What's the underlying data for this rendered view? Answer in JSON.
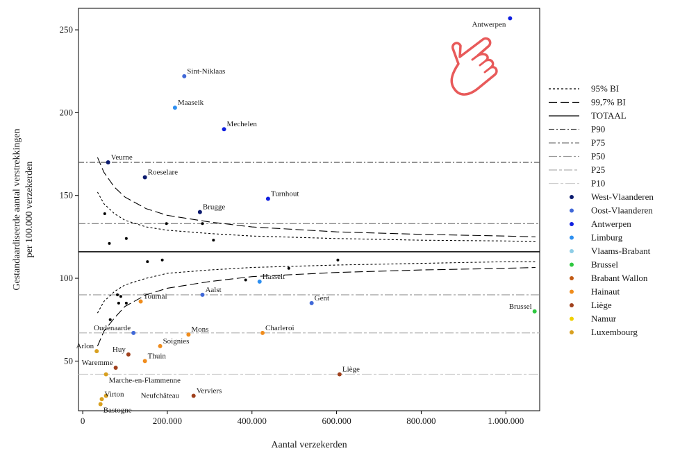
{
  "chart_data": {
    "type": "scatter",
    "title": "",
    "xlabel": "Aantal verzekerden",
    "ylabel": "Gestandaardiseerde aantal verstrekkingen per 100.000 verzekerden",
    "ylabel_lines": [
      "Gestandaardiseerde aantal verstrekkingen",
      "per 100.000 verzekerden"
    ],
    "xlim": [
      -10000,
      1080000
    ],
    "ylim": [
      20,
      263
    ],
    "x_ticks": [
      0,
      200000,
      400000,
      600000,
      800000,
      1000000
    ],
    "x_tick_labels": [
      "0",
      "200.000",
      "400.000",
      "600.000",
      "800.000",
      "1.000.000"
    ],
    "y_ticks": [
      50,
      100,
      150,
      200,
      250
    ],
    "y_tick_labels": [
      "50",
      "100",
      "150",
      "200",
      "250"
    ],
    "totaal": 116,
    "percentiles": [
      {
        "name": "P90",
        "value": 170,
        "color": "#555555",
        "dash": "8,3,2,3"
      },
      {
        "name": "P75",
        "value": 133,
        "color": "#777777",
        "dash": "10,3,3,3"
      },
      {
        "name": "P50",
        "value": 90,
        "color": "#999999",
        "dash": "12,3,3,3"
      },
      {
        "name": "P25",
        "value": 67,
        "color": "#b0b0b0",
        "dash": "12,3,4,3"
      },
      {
        "name": "P10",
        "value": 42,
        "color": "#cfcfcf",
        "dash": "14,3,4,3"
      }
    ],
    "ci95": {
      "name": "95% BI",
      "upper": [
        [
          35000,
          152
        ],
        [
          50000,
          145
        ],
        [
          75000,
          139
        ],
        [
          100000,
          135
        ],
        [
          150000,
          131
        ],
        [
          200000,
          129
        ],
        [
          300000,
          127
        ],
        [
          400000,
          125.5
        ],
        [
          600000,
          124
        ],
        [
          800000,
          123
        ],
        [
          1000000,
          122.5
        ],
        [
          1070000,
          122
        ]
      ],
      "lower": [
        [
          35000,
          79
        ],
        [
          50000,
          86
        ],
        [
          75000,
          92
        ],
        [
          100000,
          96
        ],
        [
          150000,
          100
        ],
        [
          200000,
          103
        ],
        [
          300000,
          105
        ],
        [
          400000,
          106.5
        ],
        [
          600000,
          108
        ],
        [
          800000,
          109
        ],
        [
          1000000,
          110
        ],
        [
          1070000,
          110
        ]
      ]
    },
    "ci997": {
      "name": "99,7% BI",
      "upper": [
        [
          35000,
          173
        ],
        [
          50000,
          164
        ],
        [
          75000,
          155
        ],
        [
          100000,
          149
        ],
        [
          150000,
          142
        ],
        [
          200000,
          138
        ],
        [
          300000,
          134
        ],
        [
          400000,
          131
        ],
        [
          600000,
          128
        ],
        [
          800000,
          126.5
        ],
        [
          1000000,
          125.5
        ],
        [
          1070000,
          125
        ]
      ],
      "lower": [
        [
          35000,
          59
        ],
        [
          50000,
          68
        ],
        [
          75000,
          76
        ],
        [
          100000,
          83
        ],
        [
          150000,
          90
        ],
        [
          200000,
          94
        ],
        [
          300000,
          98
        ],
        [
          400000,
          101
        ],
        [
          600000,
          103.5
        ],
        [
          800000,
          105
        ],
        [
          1000000,
          106
        ],
        [
          1070000,
          106.5
        ]
      ]
    },
    "legend_lines": [
      {
        "name": "95% BI",
        "dash": "3,3",
        "color": "#000000"
      },
      {
        "name": "99,7% BI",
        "dash": "12,5",
        "color": "#000000"
      },
      {
        "name": "TOTAAL",
        "dash": "",
        "color": "#000000"
      },
      {
        "name": "P90",
        "dash": "8,3,2,3",
        "color": "#555555"
      },
      {
        "name": "P75",
        "dash": "10,3,3,3",
        "color": "#777777"
      },
      {
        "name": "P50",
        "dash": "12,3,3,3",
        "color": "#999999"
      },
      {
        "name": "P25",
        "dash": "12,3,4,3",
        "color": "#b0b0b0"
      },
      {
        "name": "P10",
        "dash": "14,3,4,3",
        "color": "#cfcfcf"
      }
    ],
    "provinces": [
      {
        "name": "West-Vlaanderen",
        "color": "#0b1a6e"
      },
      {
        "name": "Oost-Vlaanderen",
        "color": "#4169d8"
      },
      {
        "name": "Antwerpen",
        "color": "#1020e0"
      },
      {
        "name": "Limburg",
        "color": "#2e8ff0"
      },
      {
        "name": "Vlaams-Brabant",
        "color": "#8ecde6"
      },
      {
        "name": "Brussel",
        "color": "#2ec840"
      },
      {
        "name": "Brabant Wallon",
        "color": "#c25a14"
      },
      {
        "name": "Hainaut",
        "color": "#f08c1c"
      },
      {
        "name": "Liège",
        "color": "#a0401c"
      },
      {
        "name": "Namur",
        "color": "#f0d000"
      },
      {
        "name": "Luxembourg",
        "color": "#d8a020"
      }
    ],
    "points": [
      {
        "label": "Antwerpen",
        "x": 1010000,
        "y": 257,
        "province": "Antwerpen",
        "label_pos": "left-below"
      },
      {
        "label": "Sint-Niklaas",
        "x": 240000,
        "y": 222,
        "province": "Oost-Vlaanderen",
        "label_pos": "right-above"
      },
      {
        "label": "Maaseik",
        "x": 218000,
        "y": 203,
        "province": "Limburg",
        "label_pos": "right-above"
      },
      {
        "label": "Mechelen",
        "x": 334000,
        "y": 190,
        "province": "Antwerpen",
        "label_pos": "right-above"
      },
      {
        "label": "Veurne",
        "x": 60000,
        "y": 170,
        "province": "West-Vlaanderen",
        "label_pos": "right-above"
      },
      {
        "label": "Roeselare",
        "x": 147000,
        "y": 161,
        "province": "West-Vlaanderen",
        "label_pos": "right-above"
      },
      {
        "label": "Turnhout",
        "x": 438000,
        "y": 148,
        "province": "Antwerpen",
        "label_pos": "right-above"
      },
      {
        "label": "Brugge",
        "x": 277000,
        "y": 140,
        "province": "West-Vlaanderen",
        "label_pos": "right-above"
      },
      {
        "label": "Hasselt",
        "x": 418000,
        "y": 98,
        "province": "Limburg",
        "label_pos": "right-above"
      },
      {
        "label": "Aalst",
        "x": 283000,
        "y": 90,
        "province": "Oost-Vlaanderen",
        "label_pos": "right-above"
      },
      {
        "label": "Tournai",
        "x": 137000,
        "y": 86,
        "province": "Hainaut",
        "label_pos": "right-above"
      },
      {
        "label": "Gent",
        "x": 541000,
        "y": 85,
        "province": "Oost-Vlaanderen",
        "label_pos": "right-above"
      },
      {
        "label": "Brussel",
        "x": 1068000,
        "y": 80,
        "province": "Brussel",
        "label_pos": "left-above"
      },
      {
        "label": "Oudenaarde",
        "x": 120000,
        "y": 67,
        "province": "Oost-Vlaanderen",
        "label_pos": "left-above"
      },
      {
        "label": "Charleroi",
        "x": 425000,
        "y": 67,
        "province": "Hainaut",
        "label_pos": "right-above"
      },
      {
        "label": "Mons",
        "x": 250000,
        "y": 66,
        "province": "Hainaut",
        "label_pos": "right-above"
      },
      {
        "label": "Soignies",
        "x": 183000,
        "y": 59,
        "province": "Hainaut",
        "label_pos": "right-above"
      },
      {
        "label": "Arlon",
        "x": 33000,
        "y": 56,
        "province": "Luxembourg",
        "label_pos": "left-above"
      },
      {
        "label": "Huy",
        "x": 108000,
        "y": 54,
        "province": "Liège",
        "label_pos": "left-above"
      },
      {
        "label": "Thuin",
        "x": 147000,
        "y": 50,
        "province": "Hainaut",
        "label_pos": "right-above"
      },
      {
        "label": "Waremme",
        "x": 78000,
        "y": 46,
        "province": "Liège",
        "label_pos": "left-above"
      },
      {
        "label": "Liège",
        "x": 607000,
        "y": 42,
        "province": "Liège",
        "label_pos": "right-above"
      },
      {
        "label": "Marche-en-Flammenne",
        "x": 55000,
        "y": 42,
        "province": "Luxembourg",
        "label_pos": "right-below"
      },
      {
        "label": "Neufchâteau",
        "x": 55000,
        "y": 29,
        "province": "Luxembourg",
        "label_pos": "right-far-above"
      },
      {
        "label": "Verviers",
        "x": 262000,
        "y": 29,
        "province": "Liège",
        "label_pos": "right-above"
      },
      {
        "label": "Virton",
        "x": 45000,
        "y": 27,
        "province": "Luxembourg",
        "label_pos": "right-above"
      },
      {
        "label": "Bastogne",
        "x": 42000,
        "y": 24,
        "province": "Luxembourg",
        "label_pos": "right-below"
      }
    ],
    "unlabeled_points": [
      [
        52000,
        139
      ],
      [
        63000,
        121
      ],
      [
        103000,
        124
      ],
      [
        198000,
        133
      ],
      [
        283000,
        133
      ],
      [
        309000,
        123
      ],
      [
        153000,
        110
      ],
      [
        188000,
        111
      ],
      [
        487000,
        106
      ],
      [
        603000,
        111
      ],
      [
        385000,
        99
      ],
      [
        85000,
        85
      ],
      [
        103000,
        85
      ],
      [
        82000,
        90
      ],
      [
        90000,
        89
      ],
      [
        65000,
        75
      ]
    ]
  },
  "icons": {
    "pointer": "hand-pointer-icon",
    "pointer_color": "#e85a5a"
  }
}
